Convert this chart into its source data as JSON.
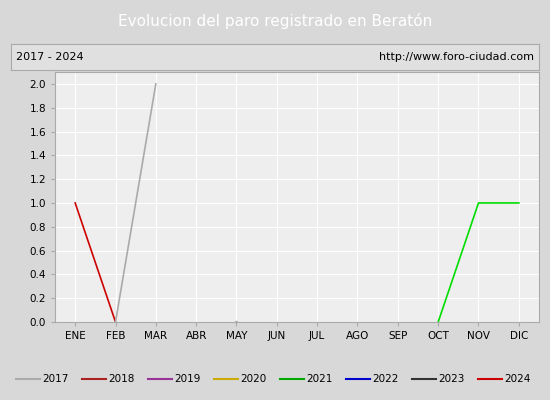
{
  "title": "Evolucion del paro registrado en Beratón",
  "title_color": "#ffffff",
  "title_bg_color": "#4a7abf",
  "subtitle_left": "2017 - 2024",
  "subtitle_right": "http://www.foro-ciudad.com",
  "subtitle_bg_color": "#e0e0e0",
  "subtitle_border_color": "#aaaaaa",
  "x_labels": [
    "ENE",
    "FEB",
    "MAR",
    "ABR",
    "MAY",
    "JUN",
    "JUL",
    "AGO",
    "SEP",
    "OCT",
    "NOV",
    "DIC"
  ],
  "y_lim": [
    0.0,
    2.1
  ],
  "y_ticks": [
    0.0,
    0.2,
    0.4,
    0.6,
    0.8,
    1.0,
    1.2,
    1.4,
    1.6,
    1.8,
    2.0
  ],
  "bg_color": "#d8d8d8",
  "plot_bg_color": "#eeeeee",
  "grid_color": "#ffffff",
  "series": {
    "2017": {
      "color": "#aaaaaa",
      "data": [
        null,
        null,
        null,
        null,
        null,
        null,
        null,
        null,
        null,
        null,
        null,
        null
      ]
    },
    "2018": {
      "color": "#cc0000",
      "data": [
        1.0,
        0.0,
        null,
        null,
        null,
        null,
        null,
        null,
        null,
        null,
        null,
        null
      ]
    },
    "2019": {
      "color": "#aa00aa",
      "data": [
        null,
        null,
        null,
        null,
        null,
        null,
        null,
        null,
        null,
        null,
        null,
        null
      ]
    },
    "2020": {
      "color": "#ddaa00",
      "data": [
        null,
        null,
        null,
        null,
        null,
        null,
        null,
        null,
        null,
        null,
        null,
        null
      ]
    },
    "2021": {
      "color": "#00cc00",
      "data": [
        null,
        null,
        null,
        null,
        null,
        null,
        null,
        null,
        null,
        null,
        null,
        null
      ]
    },
    "2022": {
      "color": "#0000cc",
      "data": [
        null,
        null,
        null,
        null,
        null,
        null,
        null,
        null,
        null,
        null,
        null,
        null
      ]
    },
    "2023": {
      "color": "#aaaaaa",
      "data": [
        null,
        0.0,
        2.0,
        null,
        0.0,
        null,
        null,
        null,
        null,
        null,
        null,
        null
      ]
    },
    "2024": {
      "color": "#00dd00",
      "data": [
        null,
        null,
        null,
        null,
        null,
        null,
        null,
        null,
        null,
        0.0,
        1.0,
        1.0
      ]
    }
  },
  "legend_entries": [
    {
      "label": "2017",
      "color": "#aaaaaa"
    },
    {
      "label": "2018",
      "color": "#aa2222"
    },
    {
      "label": "2019",
      "color": "#993399"
    },
    {
      "label": "2020",
      "color": "#ccaa00"
    },
    {
      "label": "2021",
      "color": "#00aa00"
    },
    {
      "label": "2022",
      "color": "#0000cc"
    },
    {
      "label": "2023",
      "color": "#333333"
    },
    {
      "label": "2024",
      "color": "#cc0000"
    }
  ]
}
